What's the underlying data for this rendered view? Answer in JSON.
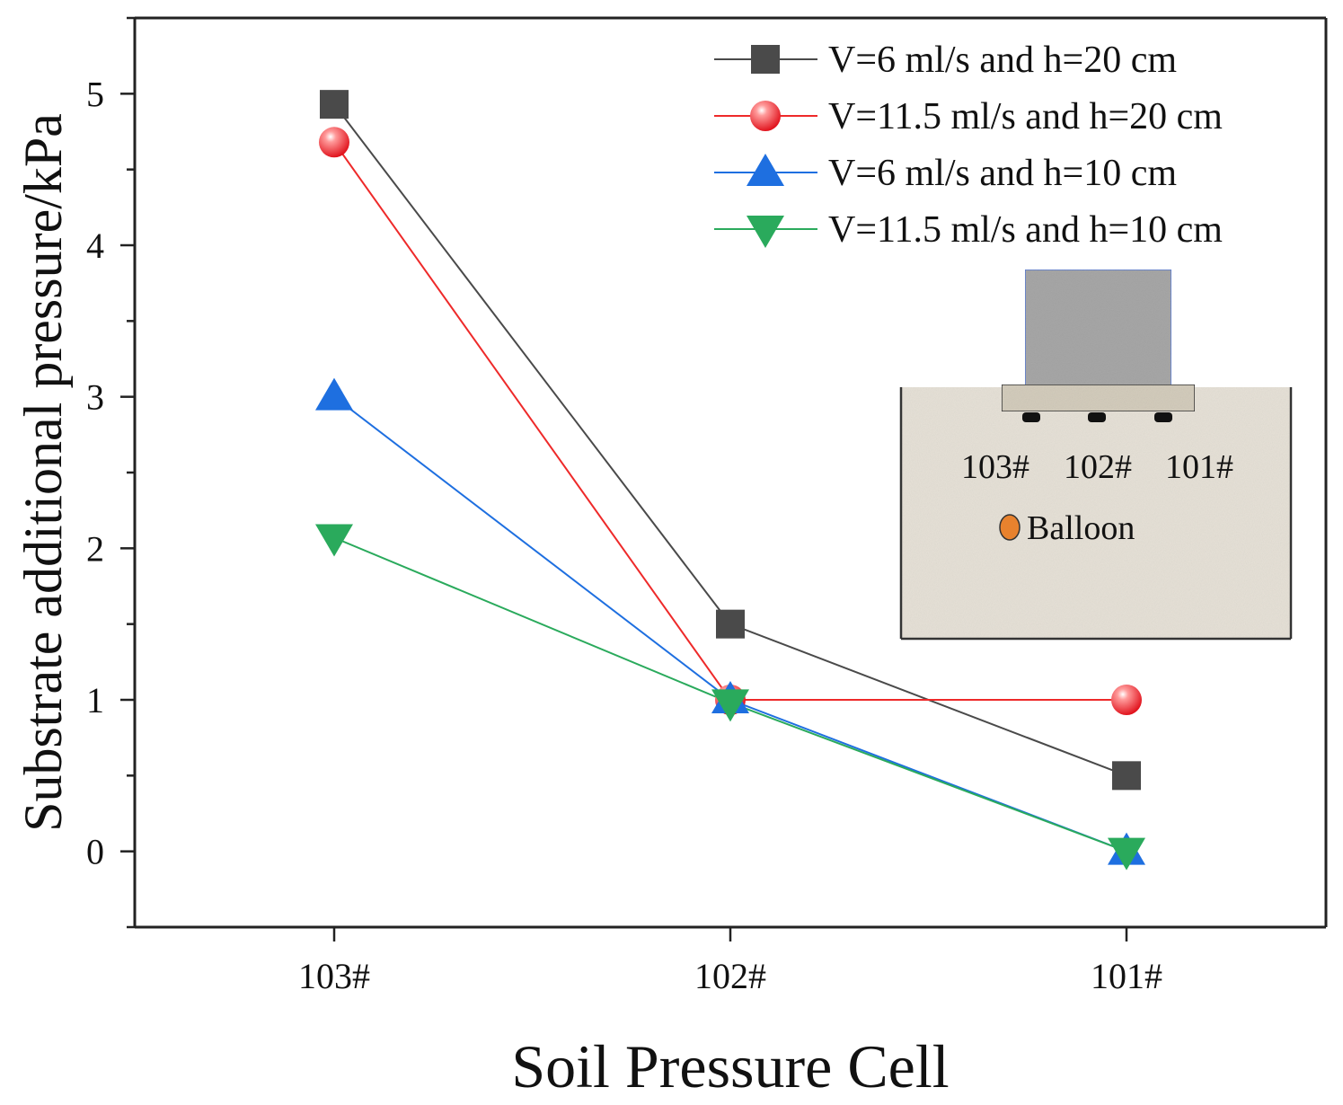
{
  "chart_data": {
    "type": "line",
    "title": "",
    "xlabel": "Soil Pressure Cell",
    "ylabel": "Substrate additional pressure/kPa",
    "categories": [
      "103#",
      "102#",
      "101#"
    ],
    "ylim": [
      -0.5,
      5.5
    ],
    "yticks": [
      0,
      1,
      2,
      3,
      4,
      5
    ],
    "grid": false,
    "legend_position": "top-right",
    "series": [
      {
        "name": "V=6 ml/s and h=20 cm",
        "marker": "square",
        "color": "#4a4a4a",
        "values": [
          4.93,
          1.5,
          0.5
        ]
      },
      {
        "name": "V=11.5 ml/s and h=20 cm",
        "marker": "circle",
        "color": "#ee2a2a",
        "values": [
          4.68,
          1.0,
          1.0
        ]
      },
      {
        "name": "V=6 ml/s and h=10 cm",
        "marker": "triangle-up",
        "color": "#1e6fe0",
        "values": [
          3.0,
          1.0,
          0.0
        ]
      },
      {
        "name": "V=11.5 ml/s and h=10 cm",
        "marker": "triangle-down",
        "color": "#2aaa5c",
        "values": [
          2.07,
          0.98,
          0.0
        ]
      }
    ]
  },
  "inset": {
    "cell_labels": [
      "103#",
      "102#",
      "101#"
    ],
    "balloon_label": "Balloon",
    "balloon_color": "#e8822e"
  }
}
